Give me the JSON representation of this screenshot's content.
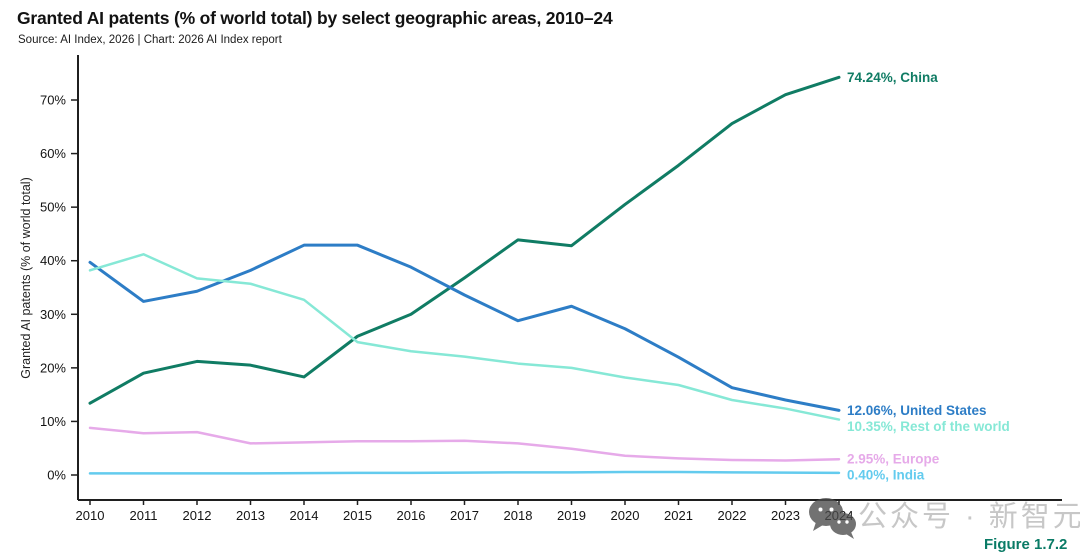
{
  "header": {
    "title": "Granted AI patents (% of world total) by select geographic areas, 2010–24",
    "source_line": "Source: AI Index, 2026 | Chart: 2026 AI Index report"
  },
  "figure_caption": "Figure 1.7.2",
  "watermark": {
    "icon": "wechat-icon",
    "text": "公众号 · 新智元"
  },
  "chart_data": {
    "type": "line",
    "title": "Granted AI patents (% of world total) by select geographic areas, 2010–24",
    "xlabel": "",
    "ylabel": "Granted AI patents (% of world total)",
    "x": [
      2010,
      2011,
      2012,
      2013,
      2014,
      2015,
      2016,
      2017,
      2018,
      2019,
      2020,
      2021,
      2022,
      2023,
      2024
    ],
    "yticks": [
      0,
      10,
      20,
      30,
      40,
      50,
      60,
      70
    ],
    "ytick_suffix": "%",
    "ylim": [
      0,
      78
    ],
    "grid": false,
    "legend_position": "end-of-line-labels",
    "axis_color": "#1f1f1f",
    "series": [
      {
        "name": "China",
        "color": "#107c64",
        "end_label": "74.24%, China",
        "values": [
          13.4,
          19.0,
          21.2,
          20.5,
          18.3,
          25.9,
          30.0,
          36.8,
          43.9,
          42.8,
          50.5,
          57.8,
          65.6,
          71.0,
          74.24
        ]
      },
      {
        "name": "United States",
        "color": "#2d7dc6",
        "end_label": "12.06%, United States",
        "values": [
          39.7,
          32.4,
          34.3,
          38.2,
          42.9,
          42.9,
          38.8,
          33.6,
          28.8,
          31.5,
          27.3,
          22.0,
          16.3,
          14.0,
          12.06
        ]
      },
      {
        "name": "Rest of the world",
        "color": "#86e8d6",
        "end_label": "10.35%, Rest of the world",
        "values": [
          38.2,
          41.2,
          36.7,
          35.7,
          32.7,
          24.8,
          23.1,
          22.1,
          20.8,
          20.0,
          18.2,
          16.8,
          14.0,
          12.4,
          10.35
        ]
      },
      {
        "name": "Europe",
        "color": "#e6aae9",
        "end_label": "2.95%, Europe",
        "values": [
          8.8,
          7.8,
          8.0,
          5.9,
          6.1,
          6.3,
          6.3,
          6.4,
          5.9,
          4.9,
          3.6,
          3.1,
          2.8,
          2.7,
          2.95
        ]
      },
      {
        "name": "India",
        "color": "#63cbee",
        "end_label": "0.40%, India",
        "values": [
          0.3,
          0.3,
          0.3,
          0.3,
          0.35,
          0.4,
          0.4,
          0.45,
          0.5,
          0.5,
          0.55,
          0.55,
          0.5,
          0.45,
          0.4
        ]
      }
    ]
  }
}
